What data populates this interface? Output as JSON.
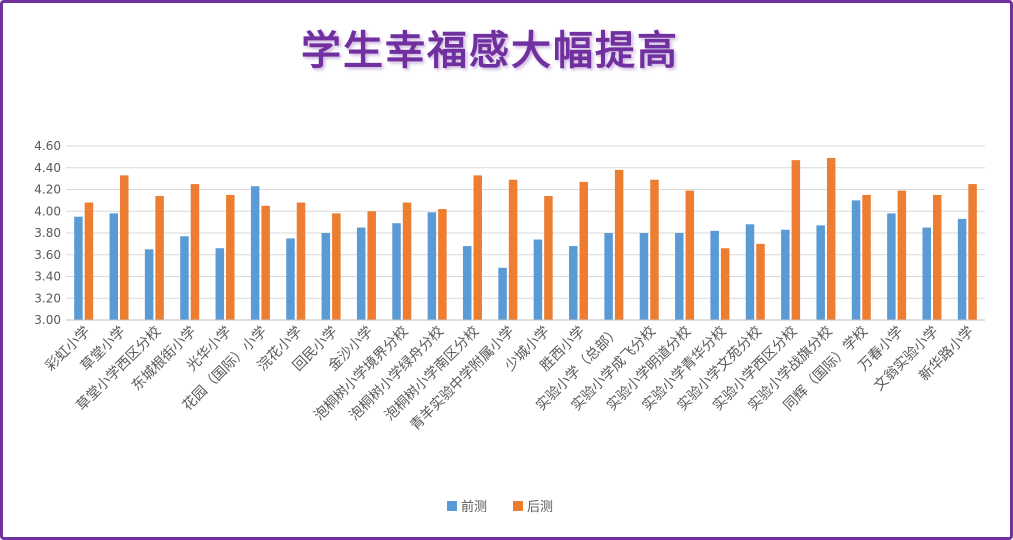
{
  "slide": {
    "title": "学生幸福感大幅提高"
  },
  "chart_data": {
    "type": "bar",
    "categories": [
      "彩虹小学",
      "草堂小学",
      "草堂小学西区分校",
      "东城根街小学",
      "光华小学",
      "花园（国际）小学",
      "浣花小学",
      "回民小学",
      "金沙小学",
      "泡桐树小学境界分校",
      "泡桐树小学绿舟分校",
      "泡桐树小学南区分校",
      "青羊实验中学附属小学",
      "少城小学",
      "胜西小学",
      "实验小学（总部）",
      "实验小学成飞分校",
      "实验小学明道分校",
      "实验小学青华分校",
      "实验小学文苑分校",
      "实验小学西区分校",
      "实验小学战旗分校",
      "同辉（国际）学校",
      "万春小学",
      "文翁实验小学",
      "新华路小学"
    ],
    "series": [
      {
        "name": "前测",
        "color": "#5b9bd5",
        "values": [
          3.95,
          3.98,
          3.65,
          3.77,
          3.66,
          4.23,
          3.75,
          3.8,
          3.85,
          3.89,
          3.99,
          3.68,
          3.48,
          3.74,
          3.68,
          3.8,
          3.8,
          3.8,
          3.82,
          3.88,
          3.83,
          3.87,
          4.1,
          3.98,
          3.85,
          3.93
        ]
      },
      {
        "name": "后测",
        "color": "#ed7d31",
        "values": [
          4.08,
          4.33,
          4.14,
          4.25,
          4.15,
          4.05,
          4.08,
          3.98,
          4.0,
          4.08,
          4.02,
          4.33,
          4.29,
          4.14,
          4.27,
          4.38,
          4.29,
          4.19,
          3.66,
          3.7,
          4.47,
          4.49,
          4.15,
          4.19,
          4.15,
          4.25
        ]
      }
    ],
    "ylim": [
      3.0,
      4.6
    ],
    "yticks": [
      "3.00",
      "3.20",
      "3.40",
      "3.60",
      "3.80",
      "4.00",
      "4.20",
      "4.40",
      "4.60"
    ],
    "grid": true,
    "legend": "bottom"
  }
}
